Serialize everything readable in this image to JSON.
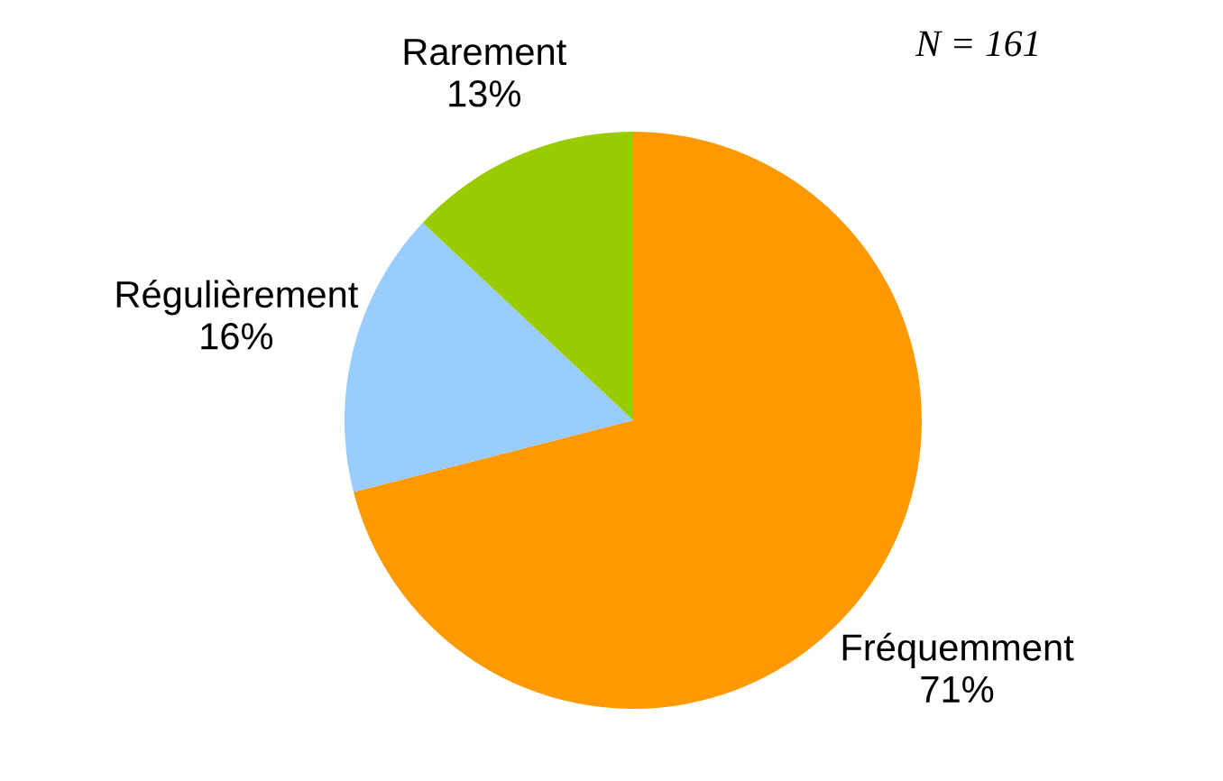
{
  "chart_data": {
    "type": "pie",
    "categories": [
      "Fréquemment",
      "Régulièrement",
      "Rarement"
    ],
    "values": [
      71,
      16,
      13
    ],
    "colors": [
      "#ff9900",
      "#99ccff",
      "#99cc00"
    ],
    "value_labels": [
      "71%",
      "16%",
      "13%"
    ],
    "annotations": [
      "N = 161"
    ]
  }
}
